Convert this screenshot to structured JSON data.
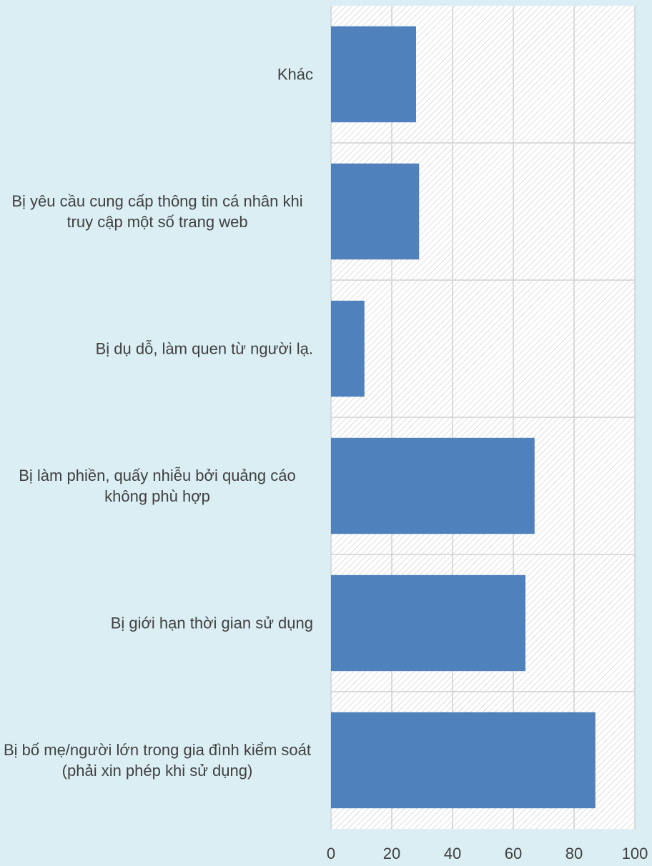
{
  "chart_data": {
    "type": "bar",
    "orientation": "horizontal",
    "categories": [
      "Khác",
      "Bị yêu cầu cung cấp thông tin cá nhân khi truy cập một số trang web",
      "Bị dụ dỗ, làm quen từ người lạ.",
      "Bị làm phiền, quấy nhiễu bởi quảng cáo không phù hợp",
      "Bị giới hạn thời gian sử dụng",
      "Bị bố mẹ/người lớn trong gia đình kiểm soát (phải xin phép khi sử dụng)"
    ],
    "values": [
      28,
      29,
      11,
      67,
      64,
      87
    ],
    "color": "#4f81bd",
    "xlim": [
      0,
      100
    ],
    "xticks": [
      0,
      20,
      40,
      60,
      80,
      100
    ],
    "grid": true
  }
}
